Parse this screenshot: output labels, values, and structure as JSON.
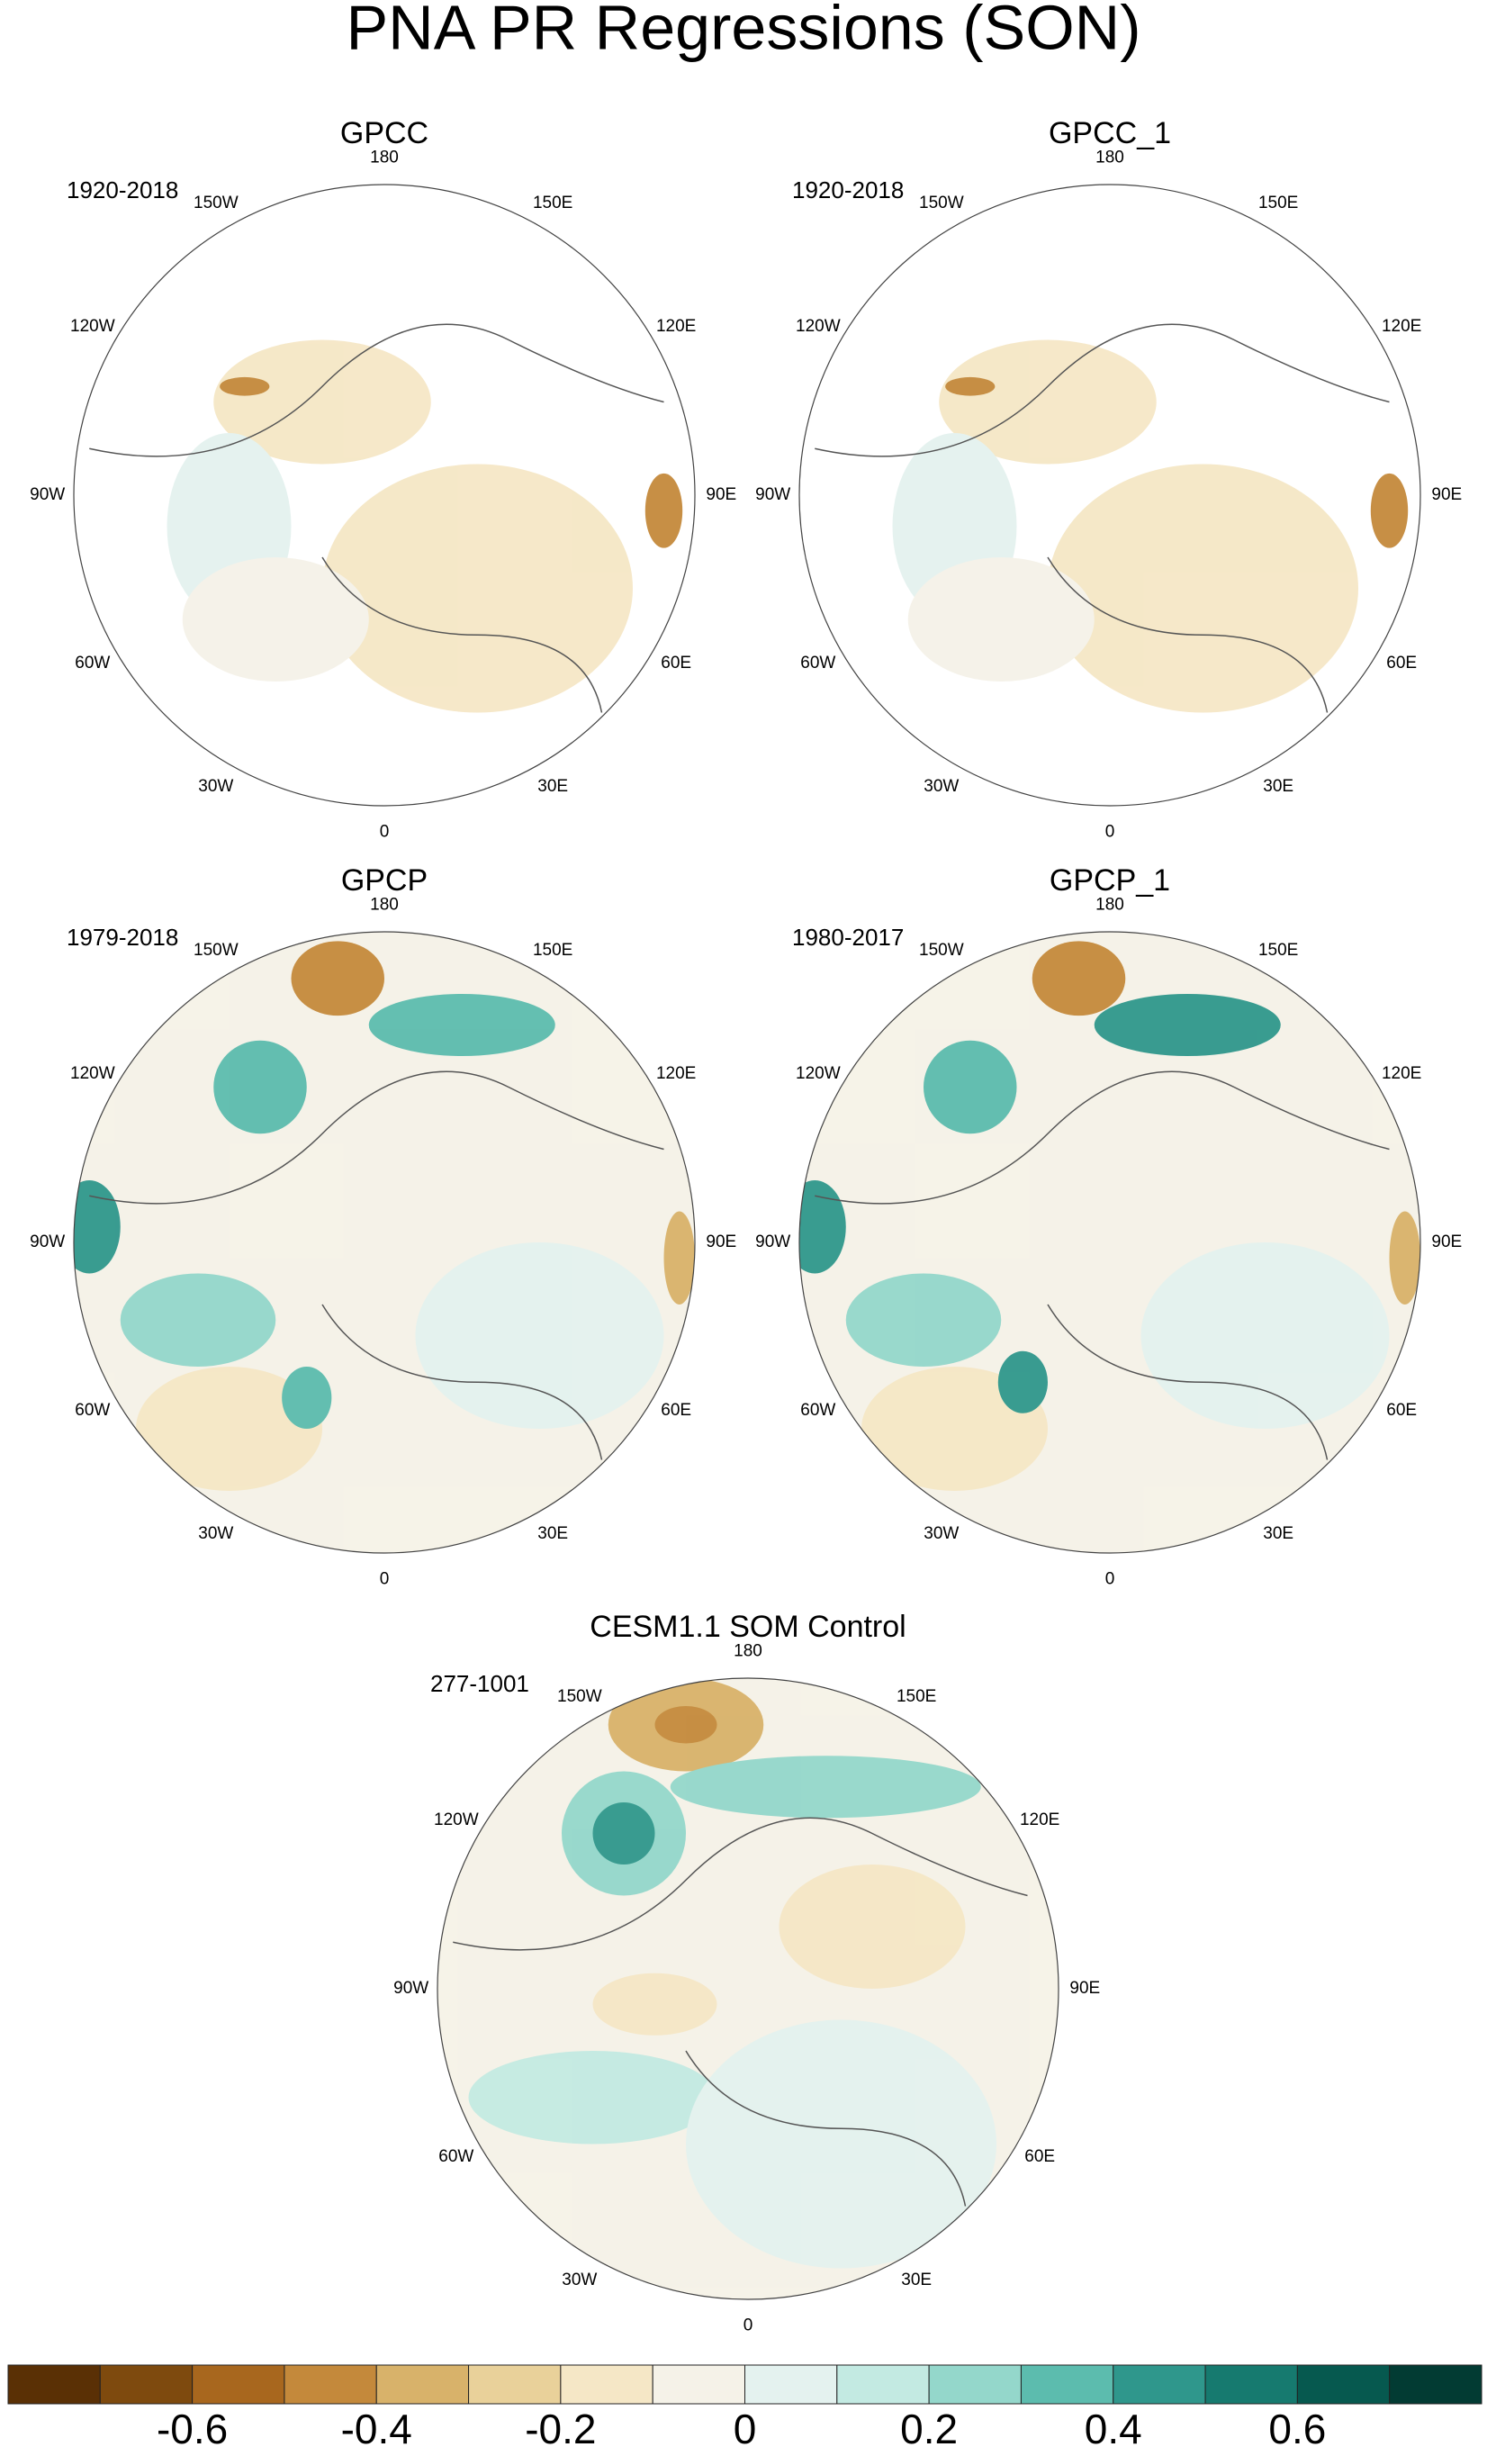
{
  "title": "PNA PR Regressions (SON)",
  "panels": [
    {
      "title": "GPCC",
      "period": "1920-2018"
    },
    {
      "title": "GPCC_1",
      "period": "1920-2018"
    },
    {
      "title": "GPCP",
      "period": "1979-2018"
    },
    {
      "title": "GPCP_1",
      "period": "1980-2017"
    },
    {
      "title": "CESM1.1 SOM Control",
      "period": "277-1001"
    }
  ],
  "longitude_labels": [
    "180",
    "150E",
    "120E",
    "90E",
    "60E",
    "30E",
    "0",
    "30W",
    "60W",
    "90W",
    "120W",
    "150W"
  ],
  "colorbar": {
    "colors": [
      "#5a3005",
      "#7e4a0e",
      "#a8671e",
      "#c4893b",
      "#d8b26a",
      "#e9d19a",
      "#f5e7c6",
      "#f5f2e8",
      "#e4f2ef",
      "#c3eae2",
      "#94d7cb",
      "#5cbcae",
      "#2f978c",
      "#167a6f",
      "#06594f",
      "#023b33"
    ],
    "levels": [
      -0.7,
      -0.6,
      -0.5,
      -0.4,
      -0.3,
      -0.2,
      -0.1,
      0,
      0.1,
      0.2,
      0.3,
      0.4,
      0.5,
      0.6,
      0.7
    ],
    "xlim": [
      -0.8,
      0.8
    ],
    "ticks": [
      -0.6,
      -0.4,
      -0.2,
      0,
      0.2,
      0.4,
      0.6
    ]
  }
}
